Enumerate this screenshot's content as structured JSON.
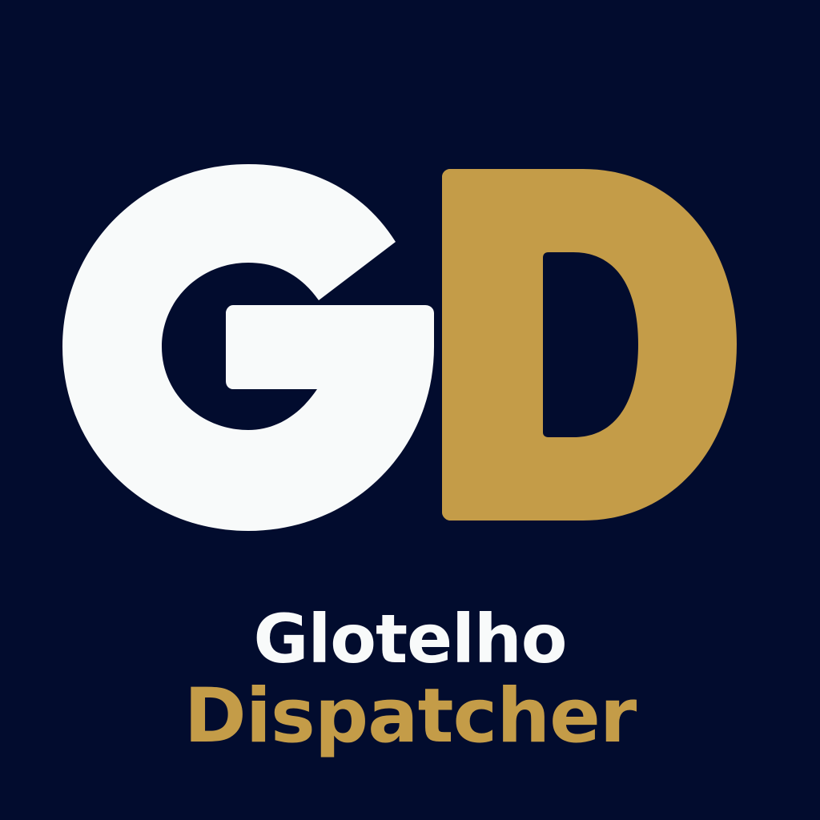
{
  "logo": {
    "monogram": {
      "first_letter": "G",
      "second_letter": "D"
    },
    "wordmark": {
      "name": "Glotelho",
      "product": "Dispatcher"
    }
  },
  "colors": {
    "background": "#020c2e",
    "primary": "#f8fafa",
    "accent": "#c49c48"
  }
}
